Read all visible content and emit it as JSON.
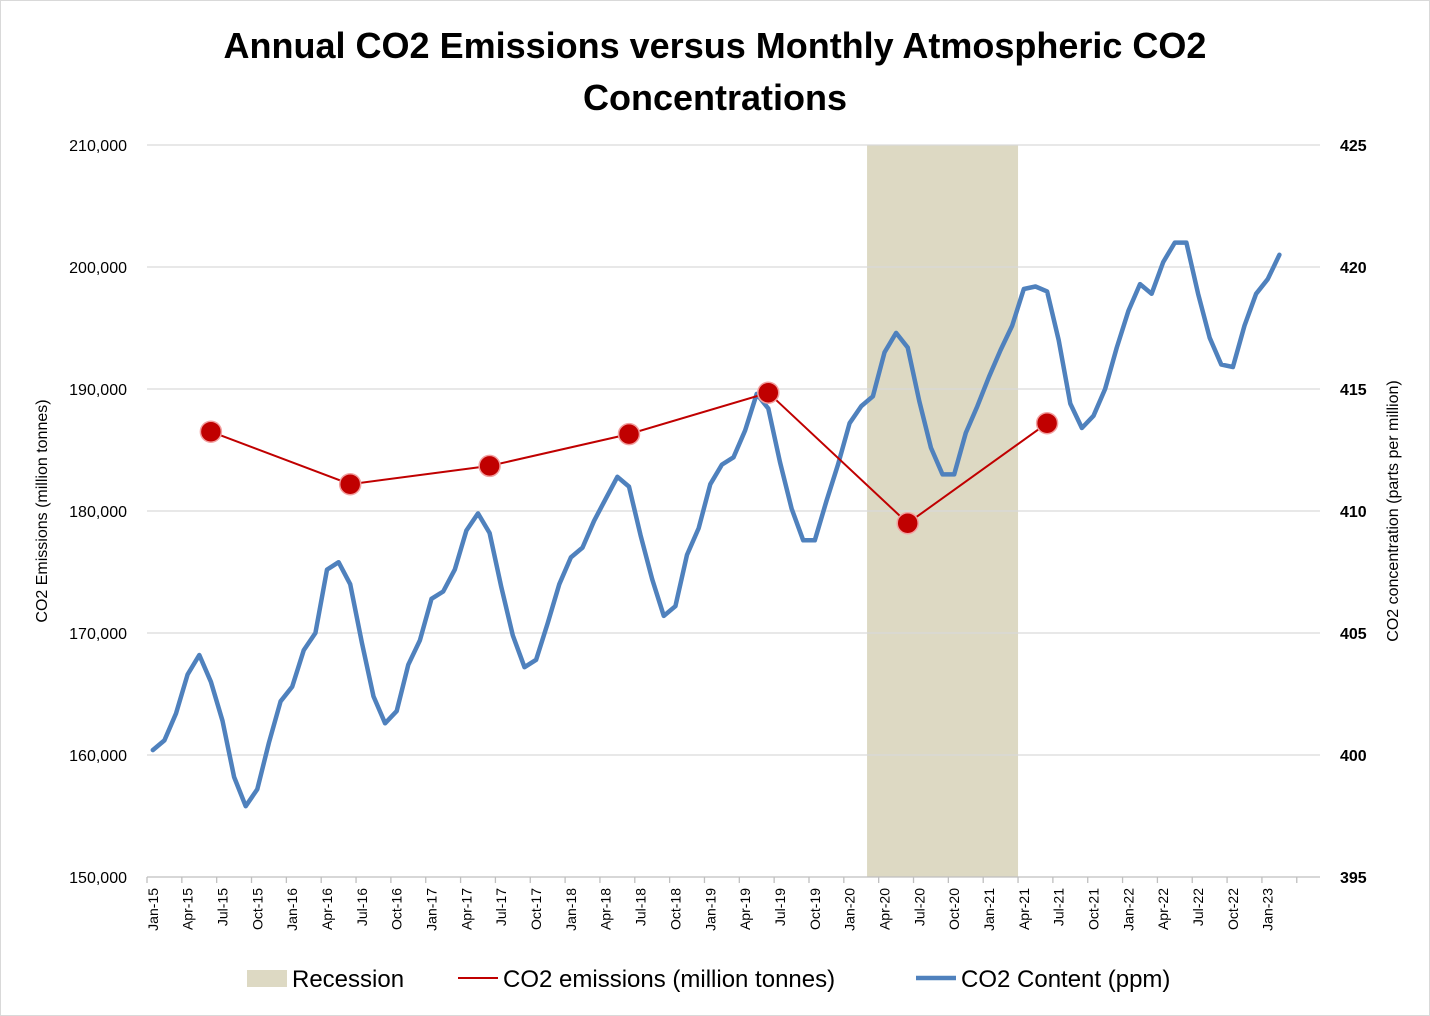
{
  "chart_data": {
    "type": "line",
    "title_line1": "Annual CO2 Emissions versus Monthly Atmospheric CO2",
    "title_line2": "Concentrations",
    "y_left_label": "CO2 Emissions (million tonnes)",
    "y_right_label": "CO2 concentration (parts per million)",
    "y_left_lim": [
      150000,
      210000
    ],
    "y_right_lim": [
      395,
      425
    ],
    "y_left_ticks": [
      "150,000",
      "160,000",
      "170,000",
      "180,000",
      "190,000",
      "200,000",
      "210,000"
    ],
    "y_right_ticks": [
      "395",
      "400",
      "405",
      "410",
      "415",
      "420",
      "425"
    ],
    "grid": true,
    "legend_position": "bottom",
    "x_tick_labels": [
      "Jan-15",
      "Apr-15",
      "Jul-15",
      "Oct-15",
      "Jan-16",
      "Apr-16",
      "Jul-16",
      "Oct-16",
      "Jan-17",
      "Apr-17",
      "Jul-17",
      "Oct-17",
      "Jan-18",
      "Apr-18",
      "Jul-18",
      "Oct-18",
      "Jan-19",
      "Apr-19",
      "Jul-19",
      "Oct-19",
      "Jan-20",
      "Apr-20",
      "Jul-20",
      "Oct-20",
      "Jan-21",
      "Apr-21",
      "Jul-21",
      "Oct-21",
      "Jan-22",
      "Apr-22",
      "Jul-22",
      "Oct-22",
      "Jan-23"
    ],
    "recession": {
      "name": "Recession",
      "start": "Mar-20",
      "end": "Mar-21",
      "color": "#ddd9c3"
    },
    "series": [
      {
        "name": "CO2 emissions (million tonnes)",
        "axis": "left",
        "color": "#c00000",
        "x": [
          "Jun-15",
          "Jun-16",
          "Jun-17",
          "Jun-18",
          "Jun-19",
          "Jun-20",
          "Jun-21"
        ],
        "values": [
          186500,
          182200,
          183700,
          186300,
          189700,
          179000,
          187200
        ]
      },
      {
        "name": "CO2 Content (ppm)",
        "axis": "right",
        "color": "#4f81bd",
        "start": "Jan-15",
        "values": [
          400.2,
          400.6,
          401.7,
          403.3,
          404.1,
          403.0,
          401.4,
          399.1,
          397.9,
          398.6,
          400.5,
          402.2,
          402.8,
          404.3,
          405.0,
          407.6,
          407.9,
          407.0,
          404.6,
          402.4,
          401.3,
          401.8,
          403.7,
          404.7,
          406.4,
          406.7,
          407.6,
          409.2,
          409.9,
          409.1,
          406.9,
          404.9,
          403.6,
          403.9,
          405.4,
          407.0,
          408.1,
          408.5,
          409.6,
          410.5,
          411.4,
          411.0,
          409.0,
          407.2,
          405.7,
          406.1,
          408.2,
          409.3,
          411.1,
          411.9,
          412.2,
          413.3,
          414.8,
          414.2,
          412.0,
          410.1,
          408.8,
          408.8,
          410.4,
          411.9,
          413.6,
          414.3,
          414.7,
          416.5,
          417.3,
          416.7,
          414.5,
          412.6,
          411.5,
          411.5,
          413.2,
          414.3,
          415.5,
          416.6,
          417.6,
          419.1,
          419.2,
          419.0,
          417.0,
          414.4,
          413.4,
          413.9,
          415.0,
          416.7,
          418.2,
          419.3,
          418.9,
          420.2,
          421.0,
          421.0,
          418.9,
          417.1,
          416.0,
          415.9,
          417.6,
          418.9,
          419.5,
          420.5
        ]
      }
    ]
  }
}
